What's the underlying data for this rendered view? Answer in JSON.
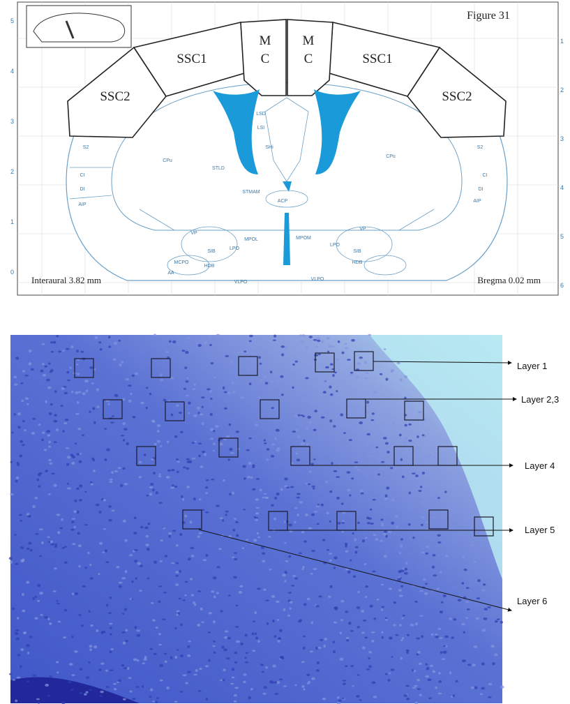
{
  "atlas": {
    "title": "Figure 31",
    "regions": {
      "ssc2_left": "SSC2",
      "ssc1_left": "SSC1",
      "mc_left": {
        "line1": "M",
        "line2": "C"
      },
      "mc_right": {
        "line1": "M",
        "line2": "C"
      },
      "ssc1_right": "SSC1",
      "ssc2_right": "SSC2"
    },
    "small_labels": [
      "CPu",
      "CPu",
      "LSD",
      "LSI",
      "S2",
      "S2",
      "CI",
      "CI",
      "DI",
      "DI",
      "AIP",
      "AIP",
      "STLD",
      "STMAM",
      "LPO",
      "LPO",
      "VP",
      "VP",
      "SIB",
      "SIB",
      "HDB",
      "HDB",
      "MCPO",
      "AA",
      "VLPO",
      "VLPO",
      "MPOL",
      "MPOM",
      "SHi",
      "ACP"
    ],
    "left_ticks": [
      "5",
      "4",
      "3",
      "2",
      "1",
      "0"
    ],
    "right_ticks": [
      "1",
      "2",
      "3",
      "4",
      "5",
      "6"
    ],
    "footer_left": "Interaural 3.82 mm",
    "footer_right": "Bregma 0.02 mm"
  },
  "histology": {
    "layers": [
      "Layer 1",
      "Layer 2,3",
      "Layer 4",
      "Layer 5",
      "Layer 6"
    ]
  }
}
